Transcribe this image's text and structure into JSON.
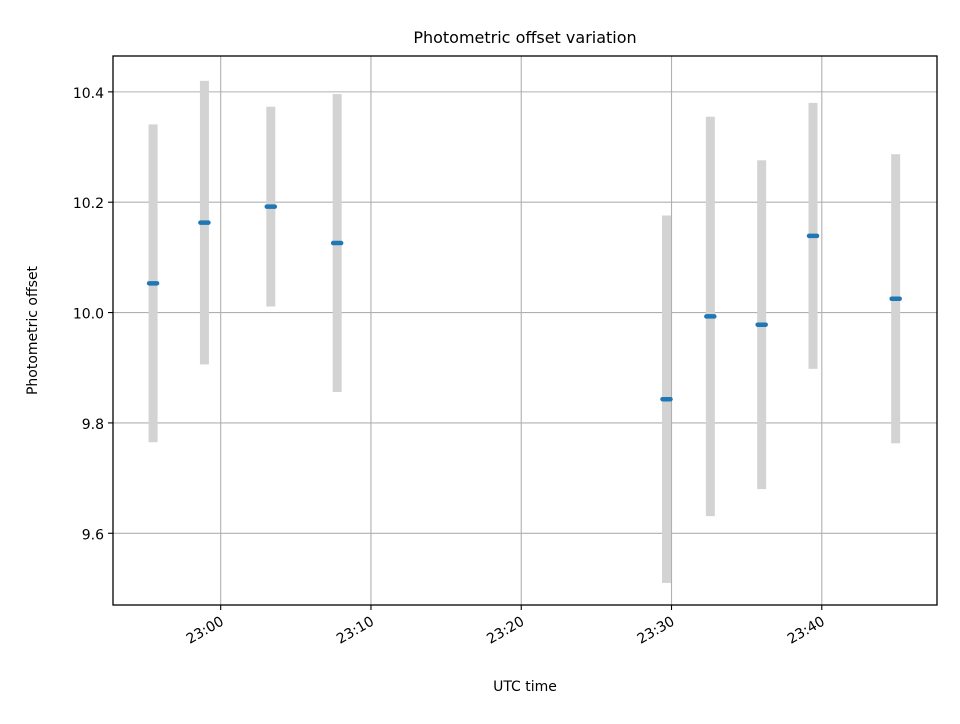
{
  "chart_data": {
    "type": "scatter",
    "title": "Photometric offset variation",
    "xlabel": "UTC time",
    "ylabel": "Photometric offset",
    "x_tick_labels": [
      "23:00",
      "23:10",
      "23:20",
      "23:30",
      "23:40"
    ],
    "y_tick_labels": [
      "9.6",
      "9.8",
      "10.0",
      "10.2",
      "10.4"
    ],
    "y_ticks": [
      9.6,
      9.8,
      10.0,
      10.2,
      10.4
    ],
    "xlim": [
      "22:52:50",
      "23:47:40"
    ],
    "ylim": [
      9.47,
      10.465
    ],
    "grid": true,
    "points": [
      {
        "time": "22:55:30",
        "value": 10.053,
        "error": 0.288
      },
      {
        "time": "22:58:55",
        "value": 10.163,
        "error": 0.257
      },
      {
        "time": "23:03:20",
        "value": 10.192,
        "error": 0.181
      },
      {
        "time": "23:07:45",
        "value": 10.126,
        "error": 0.27
      },
      {
        "time": "23:29:40",
        "value": 9.843,
        "error": 0.333
      },
      {
        "time": "23:32:35",
        "value": 9.993,
        "error": 0.362
      },
      {
        "time": "23:36:00",
        "value": 9.978,
        "error": 0.298
      },
      {
        "time": "23:39:25",
        "value": 10.139,
        "error": 0.241
      },
      {
        "time": "23:44:55",
        "value": 10.025,
        "error": 0.262
      }
    ],
    "colors": {
      "marker": "#1f77b4",
      "errorbar": "#d3d3d3",
      "grid": "#b0b0b0",
      "axes": "#000000"
    }
  }
}
